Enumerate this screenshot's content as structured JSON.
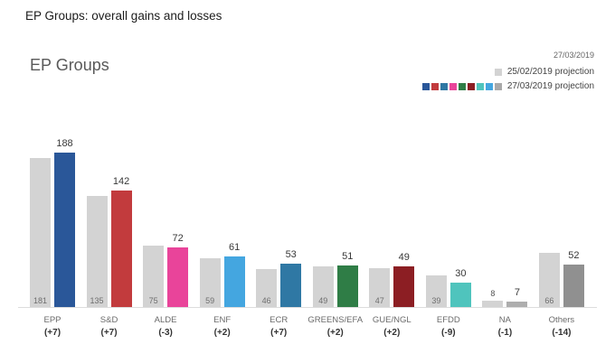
{
  "header": {
    "title": "EP Groups: overall gains and losses"
  },
  "chart_header": {
    "title": "EP Groups",
    "date": "27/03/2019"
  },
  "legend": {
    "rows": [
      {
        "label": "25/02/2019 projection",
        "swatches": [
          "#d3d3d3"
        ]
      },
      {
        "label": "27/03/2019 projection",
        "swatches": [
          "#2a5799",
          "#c23b3d",
          "#2f78a4",
          "#e9449a",
          "#2f7d46",
          "#8c1e23",
          "#4fc4bd",
          "#44a6e0",
          "#a9a9a9"
        ]
      }
    ]
  },
  "chart_data": {
    "type": "bar",
    "title": "EP Groups",
    "categories": [
      "EPP",
      "S&D",
      "ALDE",
      "ENF",
      "ECR",
      "GREENS/EFA",
      "GUE/NGL",
      "EFDD",
      "NA",
      "Others"
    ],
    "changes": [
      "(+7)",
      "(+7)",
      "(-3)",
      "(+2)",
      "(+7)",
      "(+2)",
      "(+2)",
      "(-9)",
      "(-1)",
      "(-14)"
    ],
    "series": [
      {
        "name": "25/02/2019 projection",
        "values": [
          181,
          135,
          75,
          59,
          46,
          49,
          47,
          39,
          8,
          66
        ],
        "color": "#d3d3d3"
      },
      {
        "name": "27/03/2019 projection",
        "values": [
          188,
          142,
          72,
          61,
          53,
          51,
          49,
          30,
          7,
          52
        ],
        "colors": [
          "#2a5799",
          "#c23b3d",
          "#e9449a",
          "#44a6e0",
          "#2f78a4",
          "#2f7d46",
          "#8c1e23",
          "#4fc4bd",
          "#aeaeae",
          "#909090"
        ]
      }
    ],
    "ylim": [
      0,
      200
    ],
    "grid": false,
    "legend_position": "top-right",
    "xlabel": "",
    "ylabel": ""
  }
}
